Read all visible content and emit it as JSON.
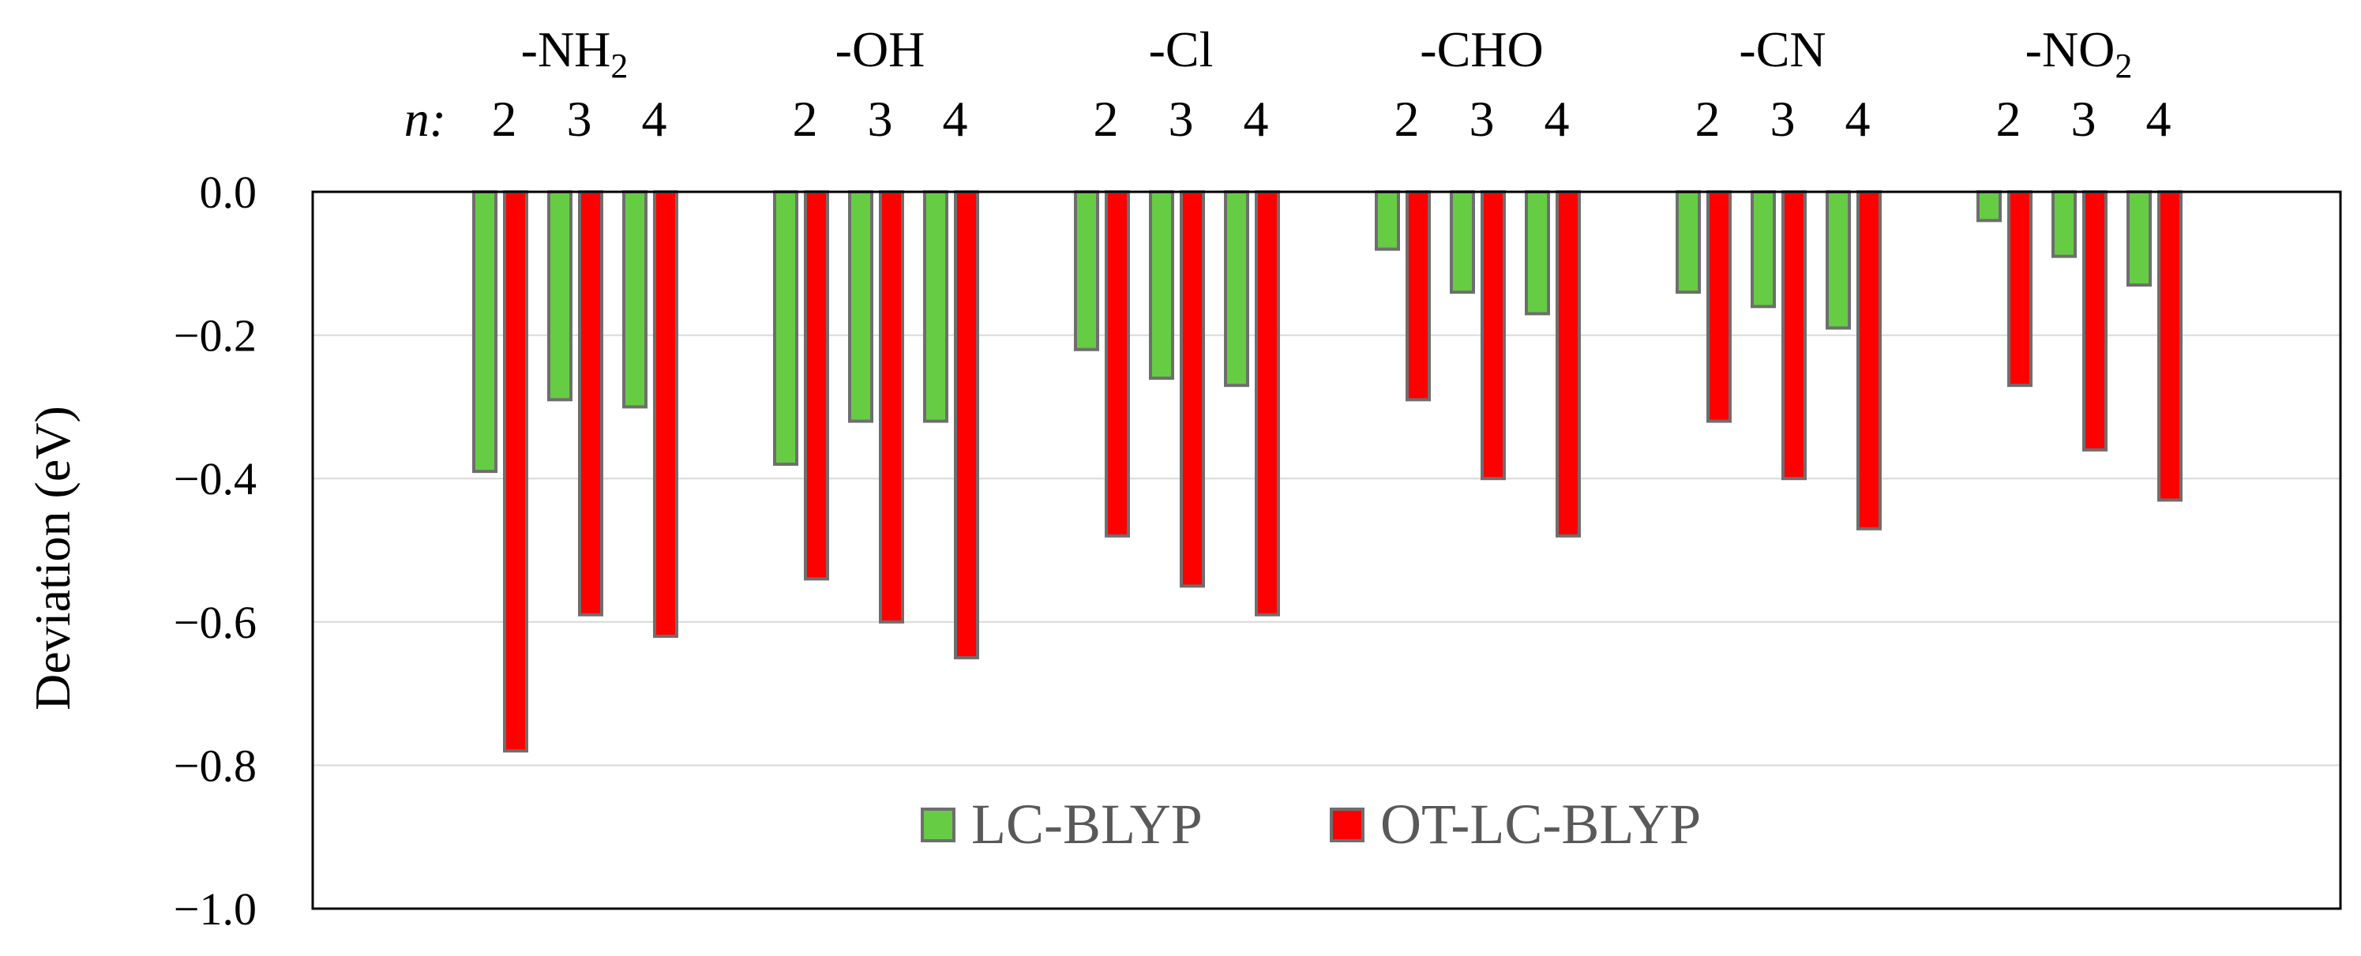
{
  "chart_data": {
    "type": "bar",
    "title": "",
    "xlabel": "",
    "ylabel": "Deviation (eV)",
    "ylim": [
      -1.0,
      0.0
    ],
    "yticks": [
      "0.0",
      "−0.2",
      "−0.4",
      "−0.6",
      "−0.8",
      "−1.0"
    ],
    "ytick_values": [
      0.0,
      -0.2,
      -0.4,
      -0.6,
      -0.8,
      -1.0
    ],
    "grid": true,
    "legend_position": "bottom-center",
    "n_label": "n:",
    "groups": [
      {
        "label": "-NH",
        "sub": "2"
      },
      {
        "label": "-OH",
        "sub": ""
      },
      {
        "label": "-Cl",
        "sub": ""
      },
      {
        "label": "-CHO",
        "sub": ""
      },
      {
        "label": "-CN",
        "sub": ""
      },
      {
        "label": "-NO",
        "sub": "2"
      }
    ],
    "n_values": [
      "2",
      "3",
      "4"
    ],
    "series": [
      {
        "name": "LC-BLYP",
        "color": "#66cc44",
        "values": [
          [
            -0.39,
            -0.29,
            -0.3
          ],
          [
            -0.38,
            -0.32,
            -0.32
          ],
          [
            -0.22,
            -0.26,
            -0.27
          ],
          [
            -0.08,
            -0.14,
            -0.17
          ],
          [
            -0.14,
            -0.16,
            -0.19
          ],
          [
            -0.04,
            -0.09,
            -0.13
          ]
        ]
      },
      {
        "name": "OT-LC-BLYP",
        "color": "#ff0000",
        "values": [
          [
            -0.78,
            -0.59,
            -0.62
          ],
          [
            -0.54,
            -0.6,
            -0.65
          ],
          [
            -0.48,
            -0.55,
            -0.59
          ],
          [
            -0.29,
            -0.4,
            -0.48
          ],
          [
            -0.32,
            -0.4,
            -0.47
          ],
          [
            -0.27,
            -0.36,
            -0.43
          ]
        ]
      }
    ],
    "colors": {
      "bar_stroke": "#6e6e6e",
      "grid": "#d9d9d9",
      "frame": "#000000",
      "legend_text": "#595959"
    }
  }
}
